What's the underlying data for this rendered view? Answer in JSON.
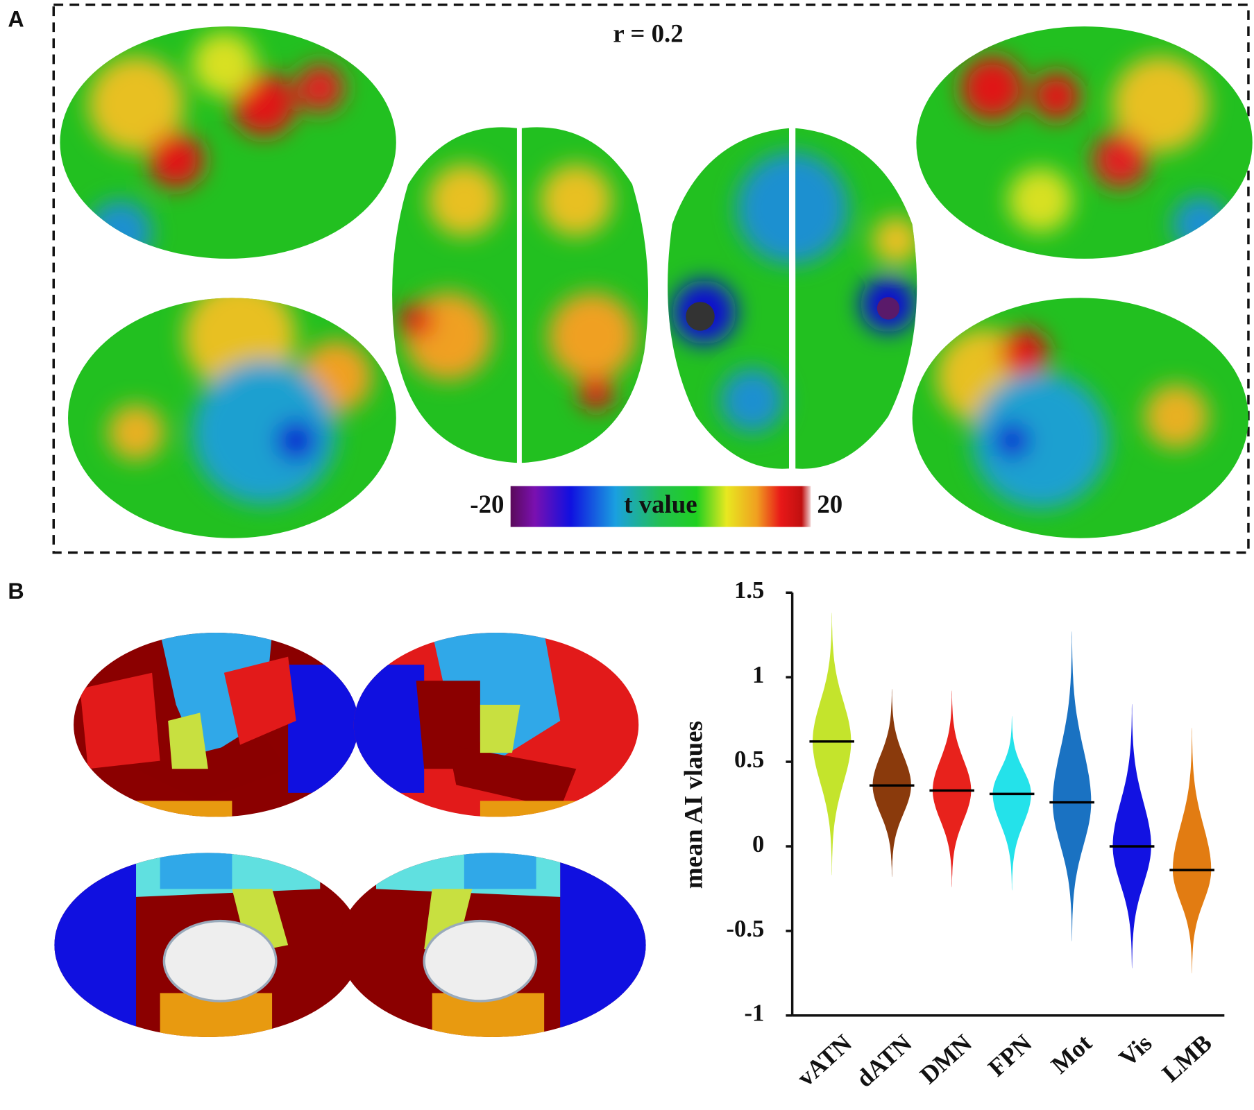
{
  "panel_a": {
    "label": "A",
    "annotation": "r = 0.2",
    "colorbar": {
      "label": "t value",
      "lim": [
        -20,
        20
      ],
      "ticks": [
        -20,
        20
      ]
    }
  },
  "panel_b": {
    "label": "B"
  },
  "chart_data": {
    "type": "violin",
    "y_label": "mean AI vlaues",
    "ylim": [
      -1,
      1.5
    ],
    "yticks": [
      1.5,
      1,
      0.5,
      0,
      -0.5,
      -1
    ],
    "series": [
      {
        "name": "vATN",
        "color": "#c4e42c",
        "median": 0.62,
        "min": -0.17,
        "max": 1.38
      },
      {
        "name": "dATN",
        "color": "#8a3a0c",
        "median": 0.36,
        "min": -0.18,
        "max": 0.93
      },
      {
        "name": "DMN",
        "color": "#e8221c",
        "median": 0.33,
        "min": -0.24,
        "max": 0.92
      },
      {
        "name": "FPN",
        "color": "#24e2ea",
        "median": 0.31,
        "min": -0.26,
        "max": 0.77
      },
      {
        "name": "Mot",
        "color": "#1a72c2",
        "median": 0.26,
        "min": -0.56,
        "max": 1.27
      },
      {
        "name": "Vis",
        "color": "#1212e2",
        "median": 0,
        "min": -0.72,
        "max": 0.84
      },
      {
        "name": "LMB",
        "color": "#e27c12",
        "median": -0.14,
        "min": -0.75,
        "max": 0.7
      }
    ]
  }
}
